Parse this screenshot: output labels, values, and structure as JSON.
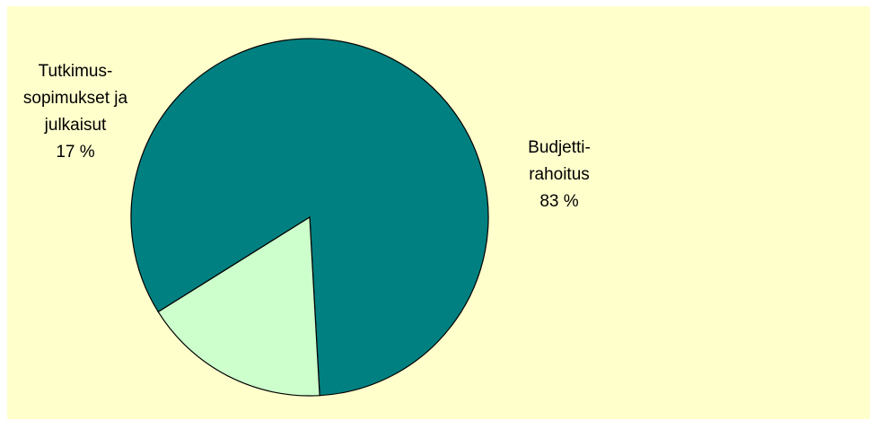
{
  "chart_data": {
    "type": "pie",
    "title": "",
    "slices": [
      {
        "label_lines": [
          "Budjetti-",
          "rahoitus",
          "83 %"
        ],
        "value": 83,
        "color": "#008080"
      },
      {
        "label_lines": [
          "Tutkimus-",
          "sopimukset ja",
          "julkaisut",
          "17 %"
        ],
        "value": 17,
        "color": "#ccffcc"
      }
    ],
    "background_color": "#ffffcc"
  }
}
